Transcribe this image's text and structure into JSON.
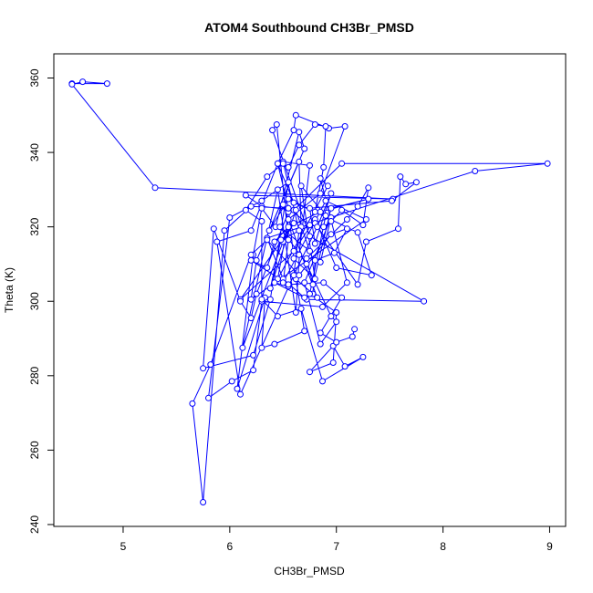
{
  "chart_data": {
    "type": "line",
    "title": "ATOM4 Southbound CH3Br_PMSD",
    "xlabel": "CH3Br_PMSD",
    "ylabel": "Theta (K)",
    "xlim": [
      4.35,
      9.15
    ],
    "ylim": [
      239.5,
      366.5
    ],
    "xticks": [
      5,
      6,
      7,
      8,
      9
    ],
    "yticks": [
      240,
      260,
      280,
      300,
      320,
      340,
      360
    ],
    "grid": false,
    "legend": "none",
    "series_color": "#0000ff",
    "markers": "open-circle",
    "series": [
      {
        "points": [
          [
            4.52,
            358.5
          ],
          [
            4.85,
            358.5
          ],
          [
            4.62,
            359.0
          ],
          [
            4.52,
            358.3
          ],
          [
            5.3,
            330.5
          ],
          [
            7.53,
            327.5
          ],
          [
            6.15,
            328.5
          ],
          [
            6.3,
            325.5
          ],
          [
            6.6,
            324.5
          ],
          [
            7.05,
            337.0
          ],
          [
            8.98,
            337.0
          ],
          [
            8.3,
            335.0
          ],
          [
            6.35,
            317.0
          ],
          [
            6.5,
            306.0
          ],
          [
            6.72,
            300.5
          ],
          [
            7.82,
            300.0
          ],
          [
            6.75,
            317.5
          ],
          [
            6.4,
            346.0
          ],
          [
            6.44,
            347.5
          ],
          [
            6.55,
            316.5
          ],
          [
            6.5,
            305.0
          ],
          [
            6.9,
            327.0
          ],
          [
            7.28,
            322.0
          ],
          [
            6.2,
            300.5
          ],
          [
            6.25,
            311.0
          ],
          [
            6.65,
            337.5
          ],
          [
            6.67,
            320.0
          ],
          [
            6.62,
            297.0
          ],
          [
            6.45,
            330.0
          ],
          [
            6.12,
            287.5
          ],
          [
            6.5,
            316.0
          ],
          [
            6.6,
            321.0
          ],
          [
            6.1,
            300.5
          ],
          [
            6.6,
            313.5
          ],
          [
            6.8,
            322.0
          ],
          [
            7.0,
            309.0
          ],
          [
            7.33,
            307.0
          ],
          [
            7.2,
            318.5
          ],
          [
            6.55,
            327.5
          ],
          [
            6.37,
            319.0
          ],
          [
            6.7,
            341.0
          ],
          [
            6.65,
            345.5
          ],
          [
            6.43,
            320.0
          ],
          [
            6.3,
            325.0
          ],
          [
            6.22,
            312.5
          ],
          [
            6.07,
            276.5
          ],
          [
            6.33,
            301.0
          ],
          [
            6.3,
            287.5
          ],
          [
            6.42,
            288.5
          ],
          [
            6.7,
            292.0
          ],
          [
            6.62,
            306.0
          ],
          [
            6.82,
            301.0
          ],
          [
            6.5,
            326.0
          ],
          [
            6.55,
            324.0
          ],
          [
            6.25,
            302.0
          ],
          [
            6.2,
            295.5
          ],
          [
            6.1,
            300.0
          ],
          [
            5.85,
            319.5
          ],
          [
            5.75,
            282.0
          ],
          [
            6.22,
            285.5
          ],
          [
            6.38,
            300.5
          ],
          [
            6.55,
            332.0
          ],
          [
            6.3,
            327.0
          ],
          [
            6.0,
            322.5
          ],
          [
            5.8,
            274.0
          ],
          [
            6.02,
            278.5
          ],
          [
            6.22,
            281.5
          ],
          [
            6.3,
            300.0
          ],
          [
            6.87,
            298.5
          ],
          [
            7.1,
            305.0
          ],
          [
            6.85,
            333.0
          ],
          [
            6.92,
            331.0
          ],
          [
            6.45,
            306.0
          ],
          [
            6.55,
            322.0
          ],
          [
            6.85,
            329.0
          ],
          [
            7.08,
            347.0
          ],
          [
            6.93,
            346.5
          ],
          [
            6.62,
            350.0
          ],
          [
            6.6,
            346.0
          ],
          [
            6.45,
            337.0
          ],
          [
            6.2,
            319.0
          ],
          [
            5.88,
            316.0
          ],
          [
            6.1,
            275.0
          ],
          [
            6.6,
            307.0
          ],
          [
            6.65,
            319.0
          ],
          [
            6.5,
            337.5
          ],
          [
            6.75,
            336.5
          ],
          [
            6.65,
            312.5
          ],
          [
            6.85,
            310.5
          ],
          [
            6.95,
            322.5
          ],
          [
            6.7,
            305.0
          ],
          [
            6.85,
            288.5
          ],
          [
            7.0,
            294.5
          ],
          [
            6.95,
            296.0
          ],
          [
            6.72,
            310.0
          ],
          [
            6.47,
            320.0
          ],
          [
            6.75,
            313.5
          ],
          [
            6.62,
            324.5
          ],
          [
            6.38,
            303.5
          ],
          [
            6.48,
            316.5
          ],
          [
            6.8,
            321.0
          ],
          [
            7.2,
            304.5
          ],
          [
            7.28,
            316.0
          ],
          [
            7.58,
            319.5
          ],
          [
            7.6,
            333.5
          ],
          [
            7.65,
            331.5
          ],
          [
            7.75,
            332.0
          ],
          [
            7.52,
            327.0
          ],
          [
            6.75,
            325.0
          ],
          [
            6.8,
            315.5
          ],
          [
            6.95,
            329.0
          ],
          [
            6.82,
            320.0
          ],
          [
            6.55,
            304.0
          ],
          [
            6.42,
            305.0
          ],
          [
            6.7,
            301.0
          ],
          [
            6.78,
            302.0
          ],
          [
            6.8,
            311.0
          ],
          [
            6.98,
            313.0
          ],
          [
            7.1,
            319.5
          ],
          [
            6.95,
            318.0
          ],
          [
            6.65,
            307.0
          ],
          [
            6.35,
            316.5
          ],
          [
            6.2,
            312.5
          ],
          [
            5.82,
            283.0
          ],
          [
            5.65,
            272.5
          ],
          [
            5.75,
            246.0
          ],
          [
            5.95,
            319.0
          ],
          [
            6.2,
            325.5
          ],
          [
            6.55,
            325.0
          ],
          [
            6.6,
            311.5
          ],
          [
            6.8,
            306.0
          ],
          [
            6.67,
            331.0
          ],
          [
            6.9,
            323.0
          ],
          [
            6.75,
            302.0
          ],
          [
            7.0,
            297.0
          ],
          [
            6.97,
            283.5
          ],
          [
            6.75,
            281.0
          ],
          [
            6.97,
            288.0
          ],
          [
            7.08,
            282.5
          ],
          [
            7.25,
            285.0
          ],
          [
            6.87,
            278.5
          ],
          [
            6.67,
            298.0
          ],
          [
            6.45,
            296.0
          ],
          [
            6.3,
            300.5
          ],
          [
            6.3,
            321.5
          ],
          [
            6.15,
            324.5
          ],
          [
            6.35,
            333.5
          ],
          [
            6.5,
            337.0
          ],
          [
            6.55,
            336.0
          ],
          [
            6.65,
            342.0
          ],
          [
            6.8,
            347.5
          ],
          [
            6.9,
            347.0
          ],
          [
            6.88,
            336.0
          ],
          [
            6.8,
            324.0
          ],
          [
            6.6,
            326.5
          ],
          [
            6.45,
            337.0
          ],
          [
            6.55,
            325.0
          ],
          [
            6.75,
            320.5
          ],
          [
            6.88,
            320.0
          ],
          [
            6.95,
            321.5
          ],
          [
            7.05,
            324.5
          ],
          [
            7.25,
            320.5
          ],
          [
            7.3,
            330.5
          ],
          [
            7.2,
            325.5
          ],
          [
            7.1,
            322.0
          ],
          [
            6.72,
            311.5
          ],
          [
            6.78,
            304.5
          ],
          [
            6.95,
            325.0
          ],
          [
            7.3,
            327.5
          ],
          [
            6.85,
            324.0
          ],
          [
            6.55,
            320.0
          ],
          [
            6.42,
            316.0
          ],
          [
            6.35,
            309.0
          ],
          [
            6.2,
            311.0
          ],
          [
            6.55,
            304.5
          ],
          [
            6.88,
            305.0
          ],
          [
            7.05,
            301.0
          ],
          [
            6.85,
            291.5
          ],
          [
            7.0,
            289.0
          ],
          [
            7.15,
            290.5
          ],
          [
            7.17,
            292.5
          ]
        ]
      }
    ]
  }
}
